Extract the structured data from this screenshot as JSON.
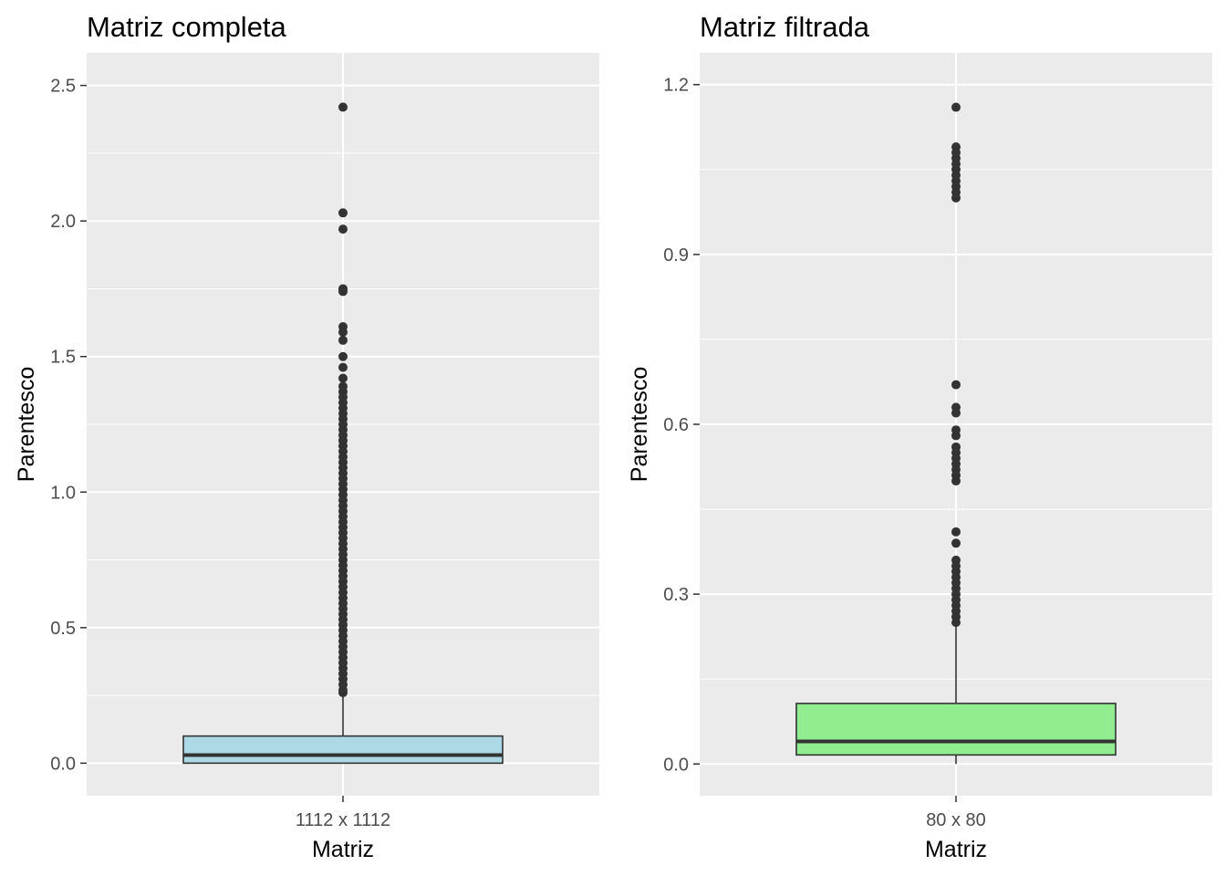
{
  "chart_data": [
    {
      "type": "boxplot",
      "title": "Matriz completa",
      "xlabel": "Matriz",
      "ylabel": "Parentesco",
      "categories": [
        "1112 x 1112"
      ],
      "y_ticks": [
        "0.0",
        "0.5",
        "1.0",
        "1.5",
        "2.0",
        "2.5"
      ],
      "y_tick_values": [
        0.0,
        0.5,
        1.0,
        1.5,
        2.0,
        2.5
      ],
      "ylim": [
        -0.12,
        2.62
      ],
      "fill_color": "#add8e6",
      "box": {
        "min": 0.0,
        "q1": 0.0,
        "median": 0.03,
        "q3": 0.1,
        "whisker_high": 0.25
      },
      "outliers": [
        2.42,
        2.03,
        1.97,
        1.75,
        1.74,
        1.61,
        1.59,
        1.56,
        1.5,
        1.46,
        1.42,
        1.39,
        1.37,
        1.35,
        1.33,
        1.31,
        1.29,
        1.27,
        1.25,
        1.23,
        1.21,
        1.19,
        1.17,
        1.15,
        1.13,
        1.11,
        1.09,
        1.07,
        1.05,
        1.03,
        1.01,
        0.99,
        0.97,
        0.95,
        0.93,
        0.91,
        0.89,
        0.87,
        0.85,
        0.83,
        0.81,
        0.79,
        0.77,
        0.75,
        0.73,
        0.71,
        0.69,
        0.67,
        0.65,
        0.63,
        0.61,
        0.59,
        0.57,
        0.55,
        0.53,
        0.51,
        0.49,
        0.47,
        0.45,
        0.43,
        0.41,
        0.39,
        0.37,
        0.35,
        0.33,
        0.31,
        0.29,
        0.27,
        0.26
      ]
    },
    {
      "type": "boxplot",
      "title": "Matriz filtrada",
      "xlabel": "Matriz",
      "ylabel": "Parentesco",
      "categories": [
        "80 x 80"
      ],
      "y_ticks": [
        "0.0",
        "0.3",
        "0.6",
        "0.9",
        "1.2"
      ],
      "y_tick_values": [
        0.0,
        0.3,
        0.6,
        0.9,
        1.2
      ],
      "ylim": [
        -0.056,
        1.256
      ],
      "fill_color": "#90ee90",
      "box": {
        "min": 0.0,
        "q1": 0.016,
        "median": 0.04,
        "q3": 0.107,
        "whisker_high": 0.25
      },
      "outliers": [
        1.16,
        1.09,
        1.08,
        1.07,
        1.06,
        1.05,
        1.04,
        1.03,
        1.02,
        1.01,
        1.0,
        0.67,
        0.63,
        0.62,
        0.59,
        0.58,
        0.56,
        0.55,
        0.54,
        0.53,
        0.52,
        0.51,
        0.5,
        0.41,
        0.39,
        0.36,
        0.35,
        0.34,
        0.33,
        0.32,
        0.31,
        0.3,
        0.29,
        0.28,
        0.27,
        0.26,
        0.25
      ]
    }
  ]
}
